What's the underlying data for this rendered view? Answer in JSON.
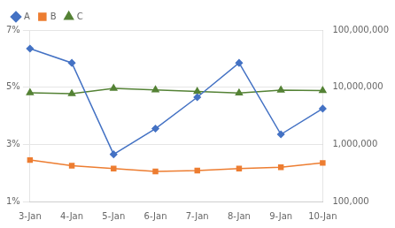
{
  "chart_data": {
    "type": "line",
    "categories": [
      "3-Jan",
      "4-Jan",
      "5-Jan",
      "6-Jan",
      "7-Jan",
      "8-Jan",
      "9-Jan",
      "10-Jan"
    ],
    "series": [
      {
        "name": "A",
        "color": "#4472c4",
        "marker": "diamond",
        "values": [
          6.35,
          5.85,
          2.65,
          3.55,
          4.65,
          5.85,
          3.35,
          4.25
        ]
      },
      {
        "name": "B",
        "color": "#ed7d31",
        "marker": "square",
        "values": [
          2.45,
          2.25,
          2.15,
          2.05,
          2.08,
          2.15,
          2.2,
          2.35
        ]
      },
      {
        "name": "C",
        "color": "#548235",
        "marker": "triangle",
        "axis": "y2",
        "values": [
          8000000,
          7700000,
          9500000,
          9000000,
          8400000,
          7900000,
          8900000,
          8700000
        ]
      }
    ],
    "ylim": [
      1,
      7
    ],
    "yticks": [
      {
        "value": 1,
        "label": "1%"
      },
      {
        "value": 3,
        "label": "3%"
      },
      {
        "value": 5,
        "label": "5%"
      },
      {
        "value": 7,
        "label": "7%"
      }
    ],
    "y2lim": [
      100000,
      100000000
    ],
    "y2ticks": [
      {
        "value": 100000,
        "label": "100,000"
      },
      {
        "value": 1000000,
        "label": "1,000,000"
      },
      {
        "value": 10000000,
        "label": "10,000,000"
      },
      {
        "value": 100000000,
        "label": "100,000,000"
      }
    ],
    "log": "y2",
    "grid": true,
    "legend": "upper left"
  }
}
